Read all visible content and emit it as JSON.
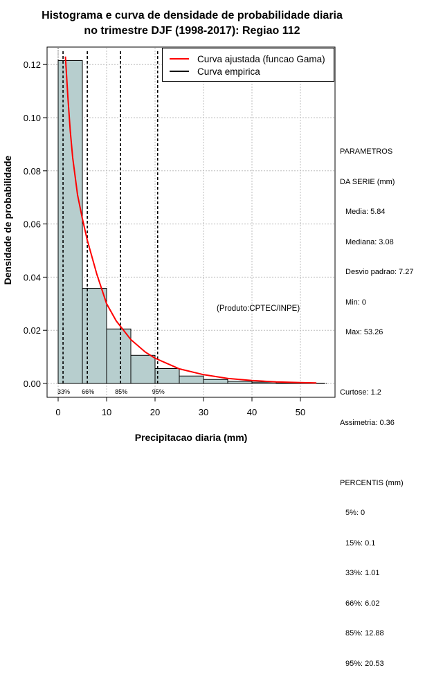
{
  "chart_data": {
    "type": "bar",
    "title": "Histograma e curva de densidade de probabilidade diaria",
    "subtitle": "no trimestre DJF (1998-2017): Regiao 112",
    "xlabel": "Precipitacao diaria (mm)",
    "ylabel": "Densidade de probabilidade",
    "xlim": [
      0,
      55
    ],
    "ylim": [
      0,
      0.125
    ],
    "x_ticks": [
      0,
      10,
      20,
      30,
      40,
      50
    ],
    "y_ticks": [
      "0.00",
      "0.02",
      "0.04",
      "0.06",
      "0.08",
      "0.10",
      "0.12"
    ],
    "bins": [
      {
        "from": 0,
        "to": 5,
        "density": 0.1215
      },
      {
        "from": 5,
        "to": 10,
        "density": 0.0358
      },
      {
        "from": 10,
        "to": 15,
        "density": 0.0205
      },
      {
        "from": 15,
        "to": 20,
        "density": 0.0106
      },
      {
        "from": 20,
        "to": 25,
        "density": 0.0056
      },
      {
        "from": 25,
        "to": 30,
        "density": 0.0028
      },
      {
        "from": 30,
        "to": 35,
        "density": 0.0015
      },
      {
        "from": 35,
        "to": 40,
        "density": 0.0008
      },
      {
        "from": 40,
        "to": 45,
        "density": 0.0005
      },
      {
        "from": 45,
        "to": 50,
        "density": 0.0002
      },
      {
        "from": 50,
        "to": 55,
        "density": 0.0001
      }
    ],
    "fitted_curve": {
      "name": "Curva ajustada (funcao Gama)",
      "color": "#ff0000",
      "x": [
        1.5,
        2,
        2.5,
        3,
        4,
        5,
        6,
        8,
        10,
        12,
        15,
        18,
        20,
        25,
        30,
        35,
        40,
        45,
        50,
        53.3
      ],
      "y": [
        0.123,
        0.108,
        0.095,
        0.085,
        0.071,
        0.062,
        0.054,
        0.041,
        0.03,
        0.0235,
        0.0165,
        0.0118,
        0.0095,
        0.0055,
        0.0033,
        0.0019,
        0.0011,
        0.0006,
        0.0003,
        0.0002
      ]
    },
    "empirical_curve": {
      "name": "Curva empirica",
      "color": "#000000"
    },
    "percentile_lines": [
      {
        "label": "33%",
        "x": 1.01
      },
      {
        "label": "66%",
        "x": 6.02
      },
      {
        "label": "85%",
        "x": 12.88
      },
      {
        "label": "95%",
        "x": 20.53
      }
    ],
    "bar_color": "#b7cece",
    "grid": true,
    "legend_position": "top-right"
  },
  "params": {
    "header1": "PARAMETROS",
    "header2": "DA SERIE (mm)",
    "media": "Media: 5.84",
    "mediana": "Mediana: 3.08",
    "desvio": "Desvio padrao: 7.27",
    "min": "Min: 0",
    "max": "Max: 53.26",
    "curtose": "Curtose: 1.2",
    "assimetria": "Assimetria: 0.36",
    "percentis_header": "PERCENTIS (mm)",
    "p5": "5%: 0",
    "p15": "15%: 0.1",
    "p33": "33%: 1.01",
    "p66": "66%: 6.02",
    "p85": "85%: 12.88",
    "p95": "95%: 20.53"
  },
  "credit": "(Produto:CPTEC/INPE)"
}
